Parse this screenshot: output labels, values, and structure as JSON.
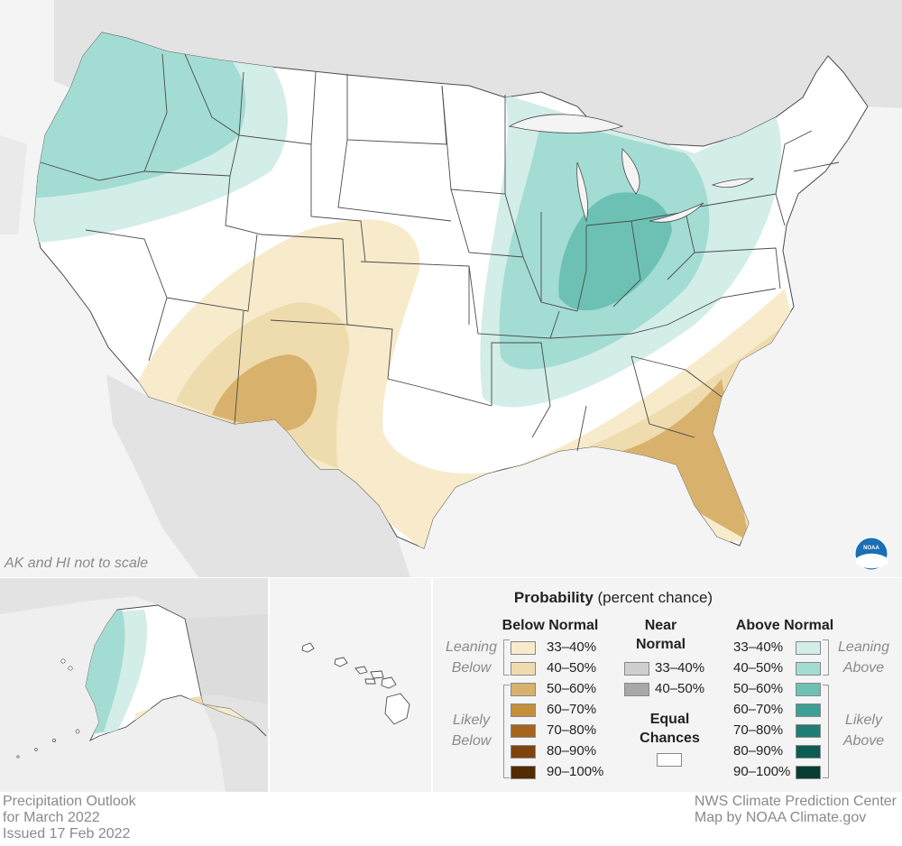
{
  "map": {
    "scale_note": "AK and HI not to scale",
    "logo_text": "NOAA"
  },
  "legend": {
    "title_bold": "Probability",
    "title_rest": " (percent chance)",
    "below_header": "Below Normal",
    "near_header_line1": "Near",
    "near_header_line2": "Normal",
    "above_header": "Above Normal",
    "leaning_below_line1": "Leaning",
    "leaning_below_line2": "Below",
    "likely_below_line1": "Likely",
    "likely_below_line2": "Below",
    "leaning_above_line1": "Leaning",
    "leaning_above_line2": "Above",
    "likely_above_line1": "Likely",
    "likely_above_line2": "Above",
    "equal_line1": "Equal",
    "equal_line2": "Chances",
    "below_items": [
      {
        "label": "33–40%",
        "color": "#f7ebcc"
      },
      {
        "label": "40–50%",
        "color": "#efdcae"
      },
      {
        "label": "50–60%",
        "color": "#d8b26d"
      },
      {
        "label": "60–70%",
        "color": "#c48f3a"
      },
      {
        "label": "70–80%",
        "color": "#a5641b"
      },
      {
        "label": "80–90%",
        "color": "#7e440c"
      },
      {
        "label": "90–100%",
        "color": "#522a04"
      }
    ],
    "near_items": [
      {
        "label": "33–40%",
        "color": "#cfcfcf"
      },
      {
        "label": "40–50%",
        "color": "#a8a8a8"
      }
    ],
    "above_items": [
      {
        "label": "33–40%",
        "color": "#d3ede9"
      },
      {
        "label": "40–50%",
        "color": "#a3dcd3"
      },
      {
        "label": "50–60%",
        "color": "#6cc1b4"
      },
      {
        "label": "60–70%",
        "color": "#3e9f95"
      },
      {
        "label": "70–80%",
        "color": "#1f7e75"
      },
      {
        "label": "80–90%",
        "color": "#0d5c52"
      },
      {
        "label": "90–100%",
        "color": "#073d35"
      }
    ]
  },
  "footer": {
    "left_line1": "Precipitation Outlook",
    "left_line2": "for March 2022",
    "left_line3": "Issued 17 Feb 2022",
    "right_line1": "NWS Climate Prediction Center",
    "right_line2": "Map by NOAA Climate.gov"
  },
  "colors": {
    "land": "#ffffff",
    "background_land": "#e3e3e3",
    "water": "#f4f4f4",
    "border": "#4a4a4a",
    "noaa_blue": "#1a6fb5"
  }
}
